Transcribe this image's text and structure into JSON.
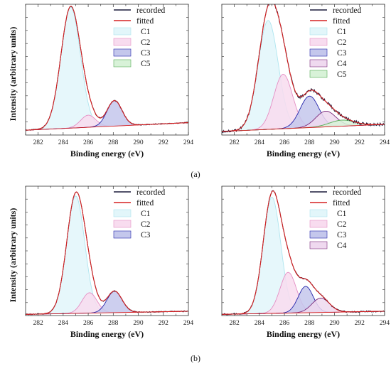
{
  "figure": {
    "label_a": "(a)",
    "label_b": "(b)"
  },
  "chart_data": [
    {
      "type": "line",
      "xlabel": "Binding energy (eV)",
      "ylabel": "Intensity (arbitrary units)",
      "xlim": [
        281,
        294
      ],
      "xticks": [
        282,
        284,
        286,
        288,
        290,
        292,
        294
      ],
      "ylim": [
        0,
        1.08
      ],
      "legend_position": "top-right",
      "background": {
        "slope": 0.0048,
        "intercept": 0.04
      },
      "components": [
        {
          "name": "C1",
          "center": 284.6,
          "height": 1.0,
          "sigma": 0.78,
          "color": "#aee5ef",
          "fill": "#e2f6fa"
        },
        {
          "name": "C2",
          "center": 286.0,
          "height": 0.1,
          "sigma": 0.6,
          "color": "#e48fc4",
          "fill": "#f8dcef"
        },
        {
          "name": "C3",
          "center": 288.1,
          "height": 0.21,
          "sigma": 0.6,
          "color": "#2222aa",
          "fill": "#c4c7ec"
        },
        {
          "name": "C5",
          "center": 289.0,
          "height": 0.0,
          "sigma": 0.6,
          "color": "#55aa55",
          "fill": "#d8f2d8"
        }
      ],
      "legend": [
        "recorded",
        "fitted",
        "C1",
        "C2",
        "C3",
        "C5"
      ],
      "noise": 0.004
    },
    {
      "type": "line",
      "xlabel": "Binding energy (eV)",
      "ylabel": "",
      "xlim": [
        281,
        294
      ],
      "xticks": [
        282,
        284,
        286,
        288,
        290,
        292,
        294
      ],
      "ylim": [
        0,
        1.08
      ],
      "legend_position": "top-right",
      "background": {
        "slope": 0.0045,
        "intercept": 0.03
      },
      "components": [
        {
          "name": "C1",
          "center": 284.7,
          "height": 0.9,
          "sigma": 0.8,
          "color": "#aee5ef",
          "fill": "#e2f6fa"
        },
        {
          "name": "C2",
          "center": 285.9,
          "height": 0.45,
          "sigma": 0.75,
          "color": "#e48fc4",
          "fill": "#f8dcef"
        },
        {
          "name": "C3",
          "center": 288.0,
          "height": 0.26,
          "sigma": 0.75,
          "color": "#2222aa",
          "fill": "#c4c7ec"
        },
        {
          "name": "C4",
          "center": 289.3,
          "height": 0.13,
          "sigma": 0.8,
          "color": "#7a2a7a",
          "fill": "#efd9ef"
        },
        {
          "name": "C5",
          "center": 290.6,
          "height": 0.05,
          "sigma": 1.0,
          "color": "#55aa55",
          "fill": "#d8f2d8"
        }
      ],
      "legend": [
        "recorded",
        "fitted",
        "C1",
        "C2",
        "C3",
        "C4",
        "C5"
      ],
      "noise": 0.012
    },
    {
      "type": "line",
      "xlabel": "Binding energy (eV)",
      "ylabel": "Intensity (arbitrary units)",
      "xlim": [
        281,
        294
      ],
      "xticks": [
        282,
        284,
        286,
        288,
        290,
        292,
        294
      ],
      "ylim": [
        0,
        1.08
      ],
      "legend_position": "top-right",
      "background": {
        "slope": 0.002,
        "intercept": 0.01
      },
      "components": [
        {
          "name": "C1",
          "center": 285.0,
          "height": 0.98,
          "sigma": 0.72,
          "color": "#aee5ef",
          "fill": "#e2f6fa"
        },
        {
          "name": "C2",
          "center": 286.1,
          "height": 0.17,
          "sigma": 0.6,
          "color": "#e48fc4",
          "fill": "#f8dcef"
        },
        {
          "name": "C3",
          "center": 288.1,
          "height": 0.18,
          "sigma": 0.6,
          "color": "#2222aa",
          "fill": "#c4c7ec"
        }
      ],
      "legend": [
        "recorded",
        "fitted",
        "C1",
        "C2",
        "C3"
      ],
      "noise": 0.004
    },
    {
      "type": "line",
      "xlabel": "Binding energy (eV)",
      "ylabel": "",
      "xlim": [
        281,
        294
      ],
      "xticks": [
        282,
        284,
        286,
        288,
        290,
        292,
        294
      ],
      "ylim": [
        0,
        1.08
      ],
      "legend_position": "top-right",
      "background": {
        "slope": 0.002,
        "intercept": 0.01
      },
      "components": [
        {
          "name": "C1",
          "center": 285.0,
          "height": 0.97,
          "sigma": 0.7,
          "color": "#aee5ef",
          "fill": "#e2f6fa"
        },
        {
          "name": "C2",
          "center": 286.3,
          "height": 0.34,
          "sigma": 0.65,
          "color": "#e48fc4",
          "fill": "#f8dcef"
        },
        {
          "name": "C3",
          "center": 287.7,
          "height": 0.22,
          "sigma": 0.6,
          "color": "#2222aa",
          "fill": "#c4c7ec"
        },
        {
          "name": "C4",
          "center": 288.9,
          "height": 0.12,
          "sigma": 0.7,
          "color": "#7a2a7a",
          "fill": "#efd9ef"
        }
      ],
      "legend": [
        "recorded",
        "fitted",
        "C1",
        "C2",
        "C3",
        "C4"
      ],
      "noise": 0.006
    }
  ],
  "colors": {
    "recorded": "#1a1a3a",
    "fitted": "#d62020",
    "axis": "#333333"
  }
}
